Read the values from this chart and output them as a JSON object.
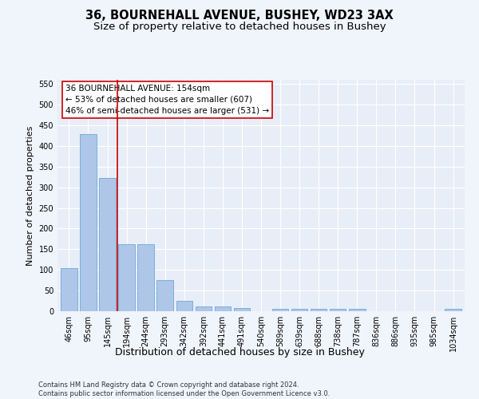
{
  "title_line1": "36, BOURNEHALL AVENUE, BUSHEY, WD23 3AX",
  "title_line2": "Size of property relative to detached houses in Bushey",
  "xlabel": "Distribution of detached houses by size in Bushey",
  "ylabel": "Number of detached properties",
  "categories": [
    "46sqm",
    "95sqm",
    "145sqm",
    "194sqm",
    "244sqm",
    "293sqm",
    "342sqm",
    "392sqm",
    "441sqm",
    "491sqm",
    "540sqm",
    "589sqm",
    "639sqm",
    "688sqm",
    "738sqm",
    "787sqm",
    "836sqm",
    "886sqm",
    "935sqm",
    "985sqm",
    "1034sqm"
  ],
  "values": [
    105,
    428,
    322,
    163,
    163,
    75,
    25,
    12,
    12,
    8,
    0,
    5,
    5,
    5,
    5,
    5,
    0,
    0,
    0,
    0,
    5
  ],
  "bar_color": "#aec6e8",
  "bar_edge_color": "#5a9fd4",
  "vline_x": 2.5,
  "vline_color": "#cc0000",
  "annotation_text": "36 BOURNEHALL AVENUE: 154sqm\n← 53% of detached houses are smaller (607)\n46% of semi-detached houses are larger (531) →",
  "annotation_box_color": "#ffffff",
  "annotation_box_edge": "#cc0000",
  "ylim": [
    0,
    560
  ],
  "yticks": [
    0,
    50,
    100,
    150,
    200,
    250,
    300,
    350,
    400,
    450,
    500,
    550
  ],
  "fig_bg_color": "#f0f4fb",
  "plot_bg_color": "#e8eef7",
  "grid_color": "#ffffff",
  "footer": "Contains HM Land Registry data © Crown copyright and database right 2024.\nContains public sector information licensed under the Open Government Licence v3.0.",
  "title_fontsize": 10.5,
  "subtitle_fontsize": 9.5,
  "tick_fontsize": 7,
  "ylabel_fontsize": 8,
  "xlabel_fontsize": 9,
  "footer_fontsize": 6,
  "annot_fontsize": 7.5
}
